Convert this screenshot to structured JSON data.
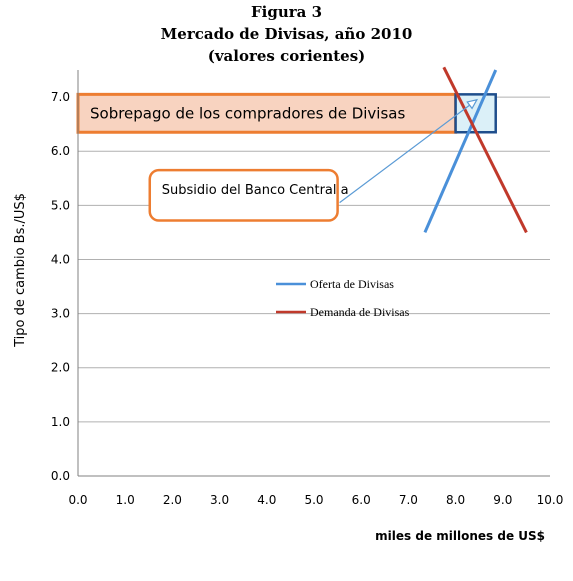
{
  "header": {
    "figure_label": "Figura 3",
    "title": "Mercado de Divisas, año 2010",
    "subtitle": "(valores corientes)"
  },
  "chart_data": {
    "type": "line",
    "xlabel": "miles de millones de US$",
    "ylabel": "Tipo de cambio Bs./US$",
    "xlim": [
      0,
      10
    ],
    "ylim": [
      0,
      7.5
    ],
    "xticks": [
      "0.0",
      "1.0",
      "2.0",
      "3.0",
      "4.0",
      "5.0",
      "6.0",
      "7.0",
      "8.0",
      "9.0",
      "10.0"
    ],
    "yticks": [
      "0.0",
      "1.0",
      "2.0",
      "3.0",
      "4.0",
      "5.0",
      "6.0",
      "7.0"
    ],
    "grid": "horizontal",
    "legend_position": "center",
    "series": [
      {
        "name": "Oferta de Divisas",
        "color": "#4a90d9",
        "points": [
          [
            7.35,
            4.5
          ],
          [
            8.85,
            7.5
          ]
        ]
      },
      {
        "name": "Demanda de Divisas",
        "color": "#c0392b",
        "points": [
          [
            7.75,
            7.55
          ],
          [
            9.5,
            4.5
          ]
        ]
      }
    ],
    "annotations": [
      {
        "id": "sobrepago",
        "text": "Sobrepago de los compradores de Divisas",
        "x0": 0,
        "x1": 8.0,
        "y0": 6.35,
        "y1": 7.05,
        "fill": "#f8d3c0",
        "border": "#ed7d31"
      },
      {
        "id": "subsidio",
        "text": "Subsidio del Banco Central a",
        "x0": 0.8,
        "x1": 5.5,
        "y0": 4.72,
        "y1": 5.65,
        "fill": "#ffffff",
        "border": "#ed7d31",
        "arrow_to": [
          8.45,
          6.95
        ]
      },
      {
        "id": "subsidio-box",
        "x0": 8.0,
        "x1": 8.85,
        "y0": 6.35,
        "y1": 7.05,
        "fill": "#dbf0f8",
        "border": "#1f4e8c"
      }
    ]
  }
}
